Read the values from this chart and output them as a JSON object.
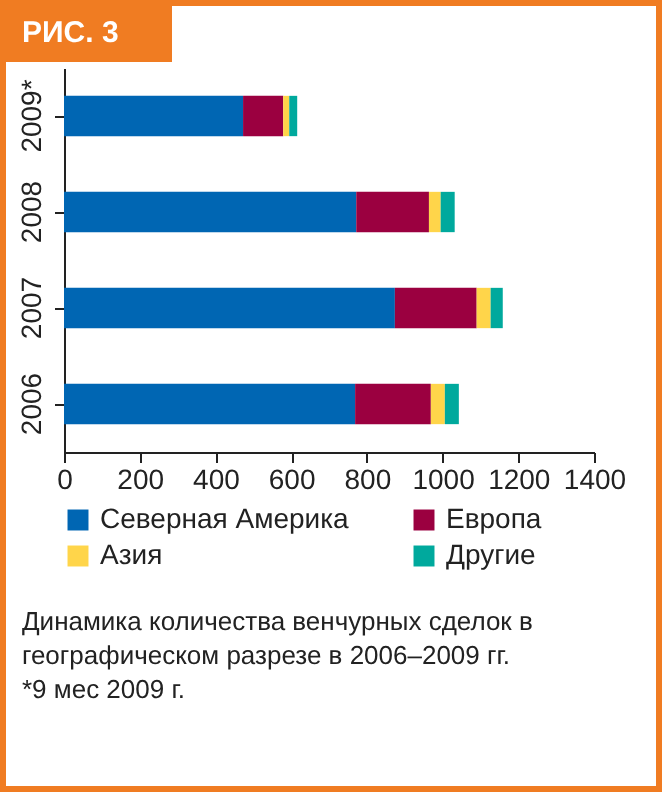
{
  "chart_data": {
    "type": "bar",
    "title": "РИС. 3",
    "orientation": "horizontal",
    "stacked": true,
    "categories": [
      "2009*",
      "2008",
      "2007",
      "2006"
    ],
    "series": [
      {
        "name": "Северная Америка",
        "color": "#0066b3",
        "values": [
          473,
          772,
          874,
          769
        ]
      },
      {
        "name": "Европа",
        "color": "#9b0040",
        "values": [
          106,
          192,
          216,
          200
        ]
      },
      {
        "name": "Азия",
        "color": "#ffd54a",
        "values": [
          16,
          31,
          37,
          37
        ]
      },
      {
        "name": "Другие",
        "color": "#00a99d",
        "values": [
          21,
          37,
          32,
          37
        ]
      }
    ],
    "xlim": [
      0,
      1400
    ],
    "xticks": [
      0,
      200,
      400,
      600,
      800,
      1000,
      1200,
      1400
    ],
    "grid": false,
    "legend": "bottom",
    "annotations": [
      "Динамика количества венчурных сделок в географическом разрезе в 2006–2009 гг.",
      "*9 мес 2009 г."
    ]
  }
}
